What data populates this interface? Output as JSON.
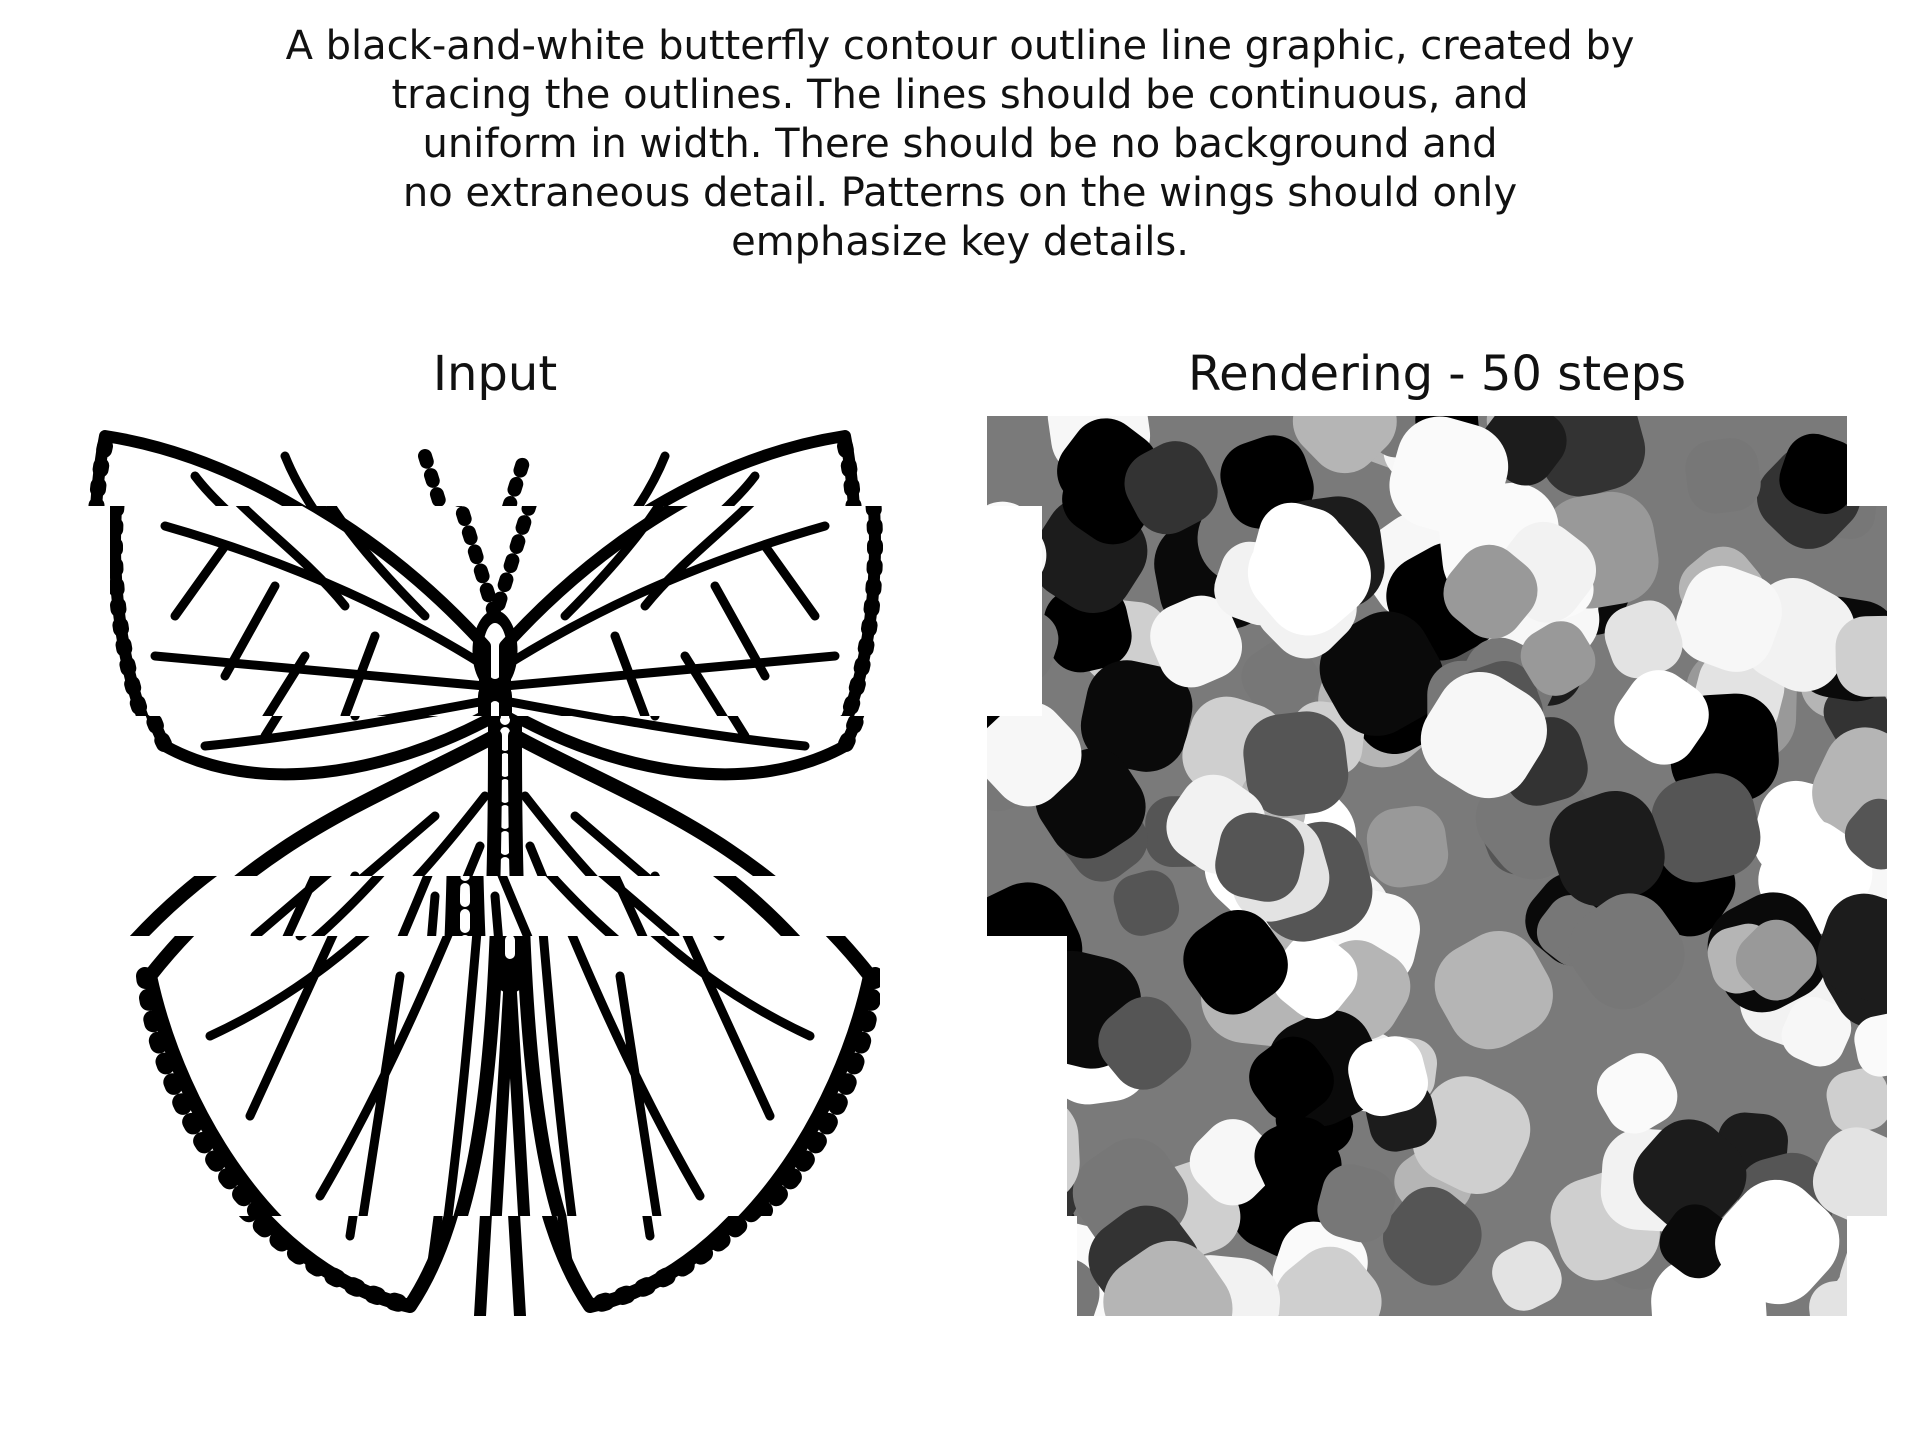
{
  "caption": "A black-and-white butterfly contour outline line graphic, created by\ntracing the outlines. The lines should be continuous, and\nuniform in width. There should be no background and\nno extraneous detail. Patterns on the wings should only\nemphasize key details.",
  "panels": [
    {
      "title": "Input",
      "content": "butterfly line drawing (tiled, offset strips)"
    },
    {
      "title": "Rendering - 50 steps",
      "content": "grayscale rounded-blob painting"
    }
  ],
  "colors": {
    "ink": "#000000",
    "paper": "#ffffff"
  },
  "icons": [
    "butterfly-illustration",
    "blob-painting"
  ]
}
